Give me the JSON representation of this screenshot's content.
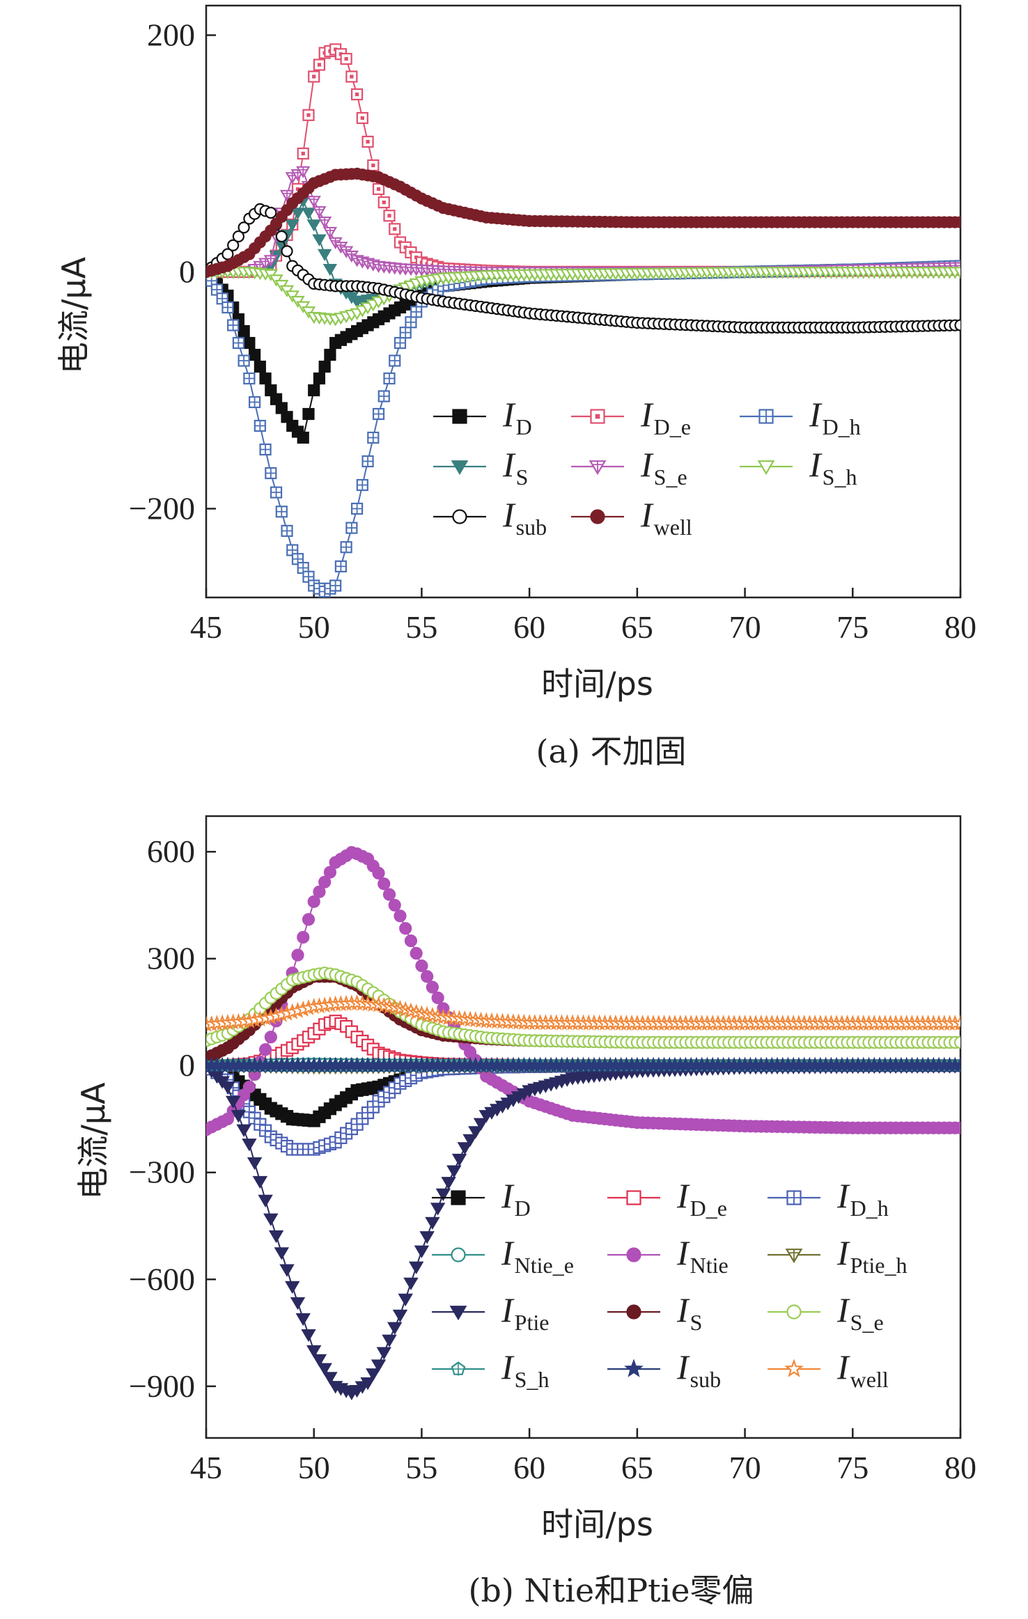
{
  "chart_data": [
    {
      "type": "line",
      "caption": "(a) 不加固",
      "xlabel": "时间/ps",
      "ylabel": "电流/μA",
      "xlim": [
        45,
        80
      ],
      "ylim": [
        -275,
        225
      ],
      "xticks": [
        45,
        50,
        55,
        60,
        65,
        70,
        75,
        80
      ],
      "yticks": [
        -200,
        0,
        200
      ],
      "legend_position": "lower-right",
      "legend_columns": 3,
      "series": [
        {
          "name": "I",
          "sub": "D",
          "color": "#111111",
          "marker": "square-filled",
          "x": [
            45,
            46,
            47,
            48,
            49,
            49.5,
            50,
            51,
            52,
            53,
            54,
            55,
            56,
            58,
            60,
            65,
            70,
            75,
            80
          ],
          "y": [
            0,
            -20,
            -60,
            -100,
            -130,
            -140,
            -100,
            -60,
            -50,
            -40,
            -30,
            -20,
            -12,
            -8,
            -5,
            -2,
            0,
            2,
            3
          ]
        },
        {
          "name": "I",
          "sub": "D_e",
          "color": "#e0506e",
          "marker": "square-open-dot",
          "x": [
            45,
            47,
            48,
            49,
            49.5,
            50,
            50.5,
            51,
            51.5,
            52,
            52.5,
            53,
            54,
            55,
            56,
            58,
            60,
            65,
            70,
            75,
            80
          ],
          "y": [
            0,
            0,
            5,
            40,
            100,
            165,
            185,
            188,
            180,
            150,
            110,
            70,
            25,
            8,
            3,
            1,
            0,
            0,
            0,
            1,
            2
          ]
        },
        {
          "name": "I",
          "sub": "D_h",
          "color": "#4a6fb5",
          "marker": "square-open-plus",
          "x": [
            45,
            46,
            47,
            48,
            49,
            50,
            50.5,
            51,
            52,
            53,
            54,
            55,
            56,
            58,
            60,
            65,
            70,
            75,
            80
          ],
          "y": [
            0,
            -30,
            -90,
            -170,
            -235,
            -265,
            -270,
            -265,
            -200,
            -120,
            -60,
            -25,
            -12,
            -6,
            -4,
            -2,
            0,
            2,
            5
          ]
        },
        {
          "name": "I",
          "sub": "S",
          "color": "#3a7f7f",
          "marker": "triangle-down-filled",
          "x": [
            45,
            46,
            47,
            48,
            49,
            49.5,
            50,
            51,
            52,
            53,
            54,
            55,
            56,
            58,
            60,
            65,
            70,
            75,
            80
          ],
          "y": [
            0,
            0,
            0,
            5,
            40,
            60,
            40,
            -10,
            -25,
            -22,
            -15,
            -10,
            -5,
            -2,
            0,
            0,
            0,
            0,
            0
          ]
        },
        {
          "name": "I",
          "sub": "S_e",
          "color": "#b45ab4",
          "marker": "triangle-down-open-plus",
          "x": [
            45,
            46,
            47,
            48,
            48.5,
            49,
            49.5,
            50,
            51,
            52,
            53,
            54,
            55,
            56,
            58,
            60,
            65,
            70,
            75,
            80
          ],
          "y": [
            0,
            0,
            0,
            10,
            50,
            80,
            85,
            60,
            25,
            10,
            5,
            3,
            2,
            1,
            0,
            0,
            0,
            0,
            2,
            4
          ]
        },
        {
          "name": "I",
          "sub": "S_h",
          "color": "#8fc850",
          "marker": "triangle-down-open",
          "x": [
            45,
            46,
            47,
            48,
            49,
            50,
            51,
            52,
            53,
            54,
            55,
            56,
            58,
            60,
            65,
            70,
            75,
            80
          ],
          "y": [
            0,
            0,
            0,
            -2,
            -20,
            -38,
            -40,
            -35,
            -25,
            -15,
            -8,
            -5,
            -3,
            -2,
            -1,
            0,
            0,
            0
          ]
        },
        {
          "name": "I",
          "sub": "sub",
          "color": "#111111",
          "marker": "circle-open",
          "x": [
            45,
            46,
            47,
            47.5,
            48,
            48.5,
            49,
            50,
            51,
            52,
            53,
            54,
            55,
            56,
            58,
            60,
            65,
            70,
            75,
            80
          ],
          "y": [
            0,
            15,
            45,
            53,
            50,
            30,
            5,
            -10,
            -12,
            -12,
            -14,
            -18,
            -22,
            -25,
            -30,
            -35,
            -43,
            -47,
            -47,
            -45
          ]
        },
        {
          "name": "I",
          "sub": "well",
          "color": "#7a1f28",
          "marker": "circle-filled",
          "x": [
            45,
            46,
            47,
            48,
            49,
            50,
            51,
            52,
            53,
            54,
            55,
            56,
            58,
            60,
            65,
            70,
            75,
            80
          ],
          "y": [
            0,
            5,
            15,
            35,
            58,
            75,
            82,
            83,
            80,
            72,
            62,
            54,
            46,
            43,
            42,
            42,
            42,
            42
          ]
        }
      ]
    },
    {
      "type": "line",
      "caption": "(b) Ntie和Ptie零偏",
      "xlabel": "时间/ps",
      "ylabel": "电流/μA",
      "xlim": [
        45,
        80
      ],
      "ylim": [
        -1045,
        700
      ],
      "xticks": [
        45,
        50,
        55,
        60,
        65,
        70,
        75,
        80
      ],
      "yticks": [
        -900,
        -600,
        -300,
        0,
        300,
        600
      ],
      "legend_position": "lower-right",
      "legend_columns": 3,
      "series": [
        {
          "name": "I",
          "sub": "D",
          "color": "#111111",
          "marker": "square-filled",
          "x": [
            45,
            46,
            47,
            48,
            49,
            50,
            51,
            52,
            53,
            54,
            55,
            56,
            58,
            60,
            65,
            70,
            75,
            80
          ],
          "y": [
            0,
            -20,
            -70,
            -120,
            -150,
            -155,
            -110,
            -70,
            -60,
            -40,
            -20,
            -10,
            -5,
            -3,
            0,
            0,
            0,
            0
          ]
        },
        {
          "name": "I",
          "sub": "D_e",
          "color": "#e0304e",
          "marker": "square-open",
          "x": [
            45,
            46,
            47,
            48,
            49,
            50,
            50.5,
            51,
            51.5,
            52,
            53,
            54,
            55,
            56,
            58,
            60,
            65,
            70,
            75,
            80
          ],
          "y": [
            0,
            0,
            5,
            20,
            50,
            90,
            115,
            125,
            110,
            80,
            35,
            15,
            8,
            4,
            2,
            0,
            0,
            0,
            0,
            0
          ]
        },
        {
          "name": "I",
          "sub": "D_h",
          "color": "#4a5fb5",
          "marker": "square-open-plus",
          "x": [
            45,
            46,
            47,
            48,
            49,
            50,
            51,
            52,
            53,
            54,
            55,
            56,
            58,
            60,
            65,
            70,
            75,
            80
          ],
          "y": [
            0,
            -40,
            -130,
            -200,
            -235,
            -235,
            -215,
            -165,
            -100,
            -50,
            -20,
            -10,
            -5,
            -3,
            0,
            0,
            0,
            0
          ]
        },
        {
          "name": "I",
          "sub": "Ntie_e",
          "color": "#2f8f8a",
          "marker": "circle-open",
          "x": [
            45,
            50,
            52,
            55,
            60,
            65,
            70,
            75,
            80
          ],
          "y": [
            0,
            5,
            3,
            2,
            1,
            0,
            0,
            0,
            0
          ]
        },
        {
          "name": "I",
          "sub": "Ntie",
          "color": "#b050b8",
          "marker": "circle-filled",
          "x": [
            45,
            46,
            47,
            48,
            49,
            50,
            51,
            51.8,
            52.5,
            53,
            54,
            55,
            56,
            57,
            58,
            60,
            62,
            65,
            70,
            75,
            80
          ],
          "y": [
            -180,
            -150,
            -60,
            80,
            260,
            460,
            570,
            600,
            580,
            540,
            420,
            280,
            160,
            60,
            -30,
            -100,
            -140,
            -160,
            -170,
            -175,
            -175
          ]
        },
        {
          "name": "I",
          "sub": "Ptie_h",
          "color": "#707030",
          "marker": "triangle-down-open-plus",
          "x": [
            45,
            50,
            55,
            60,
            65,
            70,
            75,
            80
          ],
          "y": [
            0,
            -5,
            -3,
            -2,
            0,
            0,
            0,
            0
          ]
        },
        {
          "name": "I",
          "sub": "Ptie",
          "color": "#2a2a60",
          "marker": "triangle-down-filled",
          "x": [
            45,
            46,
            47,
            48,
            49,
            50,
            51,
            51.8,
            52.5,
            53,
            54,
            55,
            56,
            57,
            58,
            60,
            62,
            65,
            70,
            75,
            80
          ],
          "y": [
            0,
            -60,
            -220,
            -430,
            -620,
            -800,
            -900,
            -920,
            -890,
            -840,
            -700,
            -520,
            -360,
            -230,
            -140,
            -70,
            -35,
            -15,
            -5,
            -3,
            -2
          ]
        },
        {
          "name": "I",
          "sub": "S",
          "color": "#6a1a22",
          "marker": "circle-filled",
          "x": [
            45,
            46,
            47,
            48,
            49,
            50,
            51,
            52,
            53,
            54,
            55,
            56,
            58,
            60,
            65,
            70,
            75,
            80
          ],
          "y": [
            20,
            50,
            100,
            160,
            220,
            250,
            250,
            225,
            175,
            130,
            100,
            85,
            75,
            70,
            65,
            65,
            65,
            65
          ]
        },
        {
          "name": "I",
          "sub": "S_e",
          "color": "#9acd55",
          "marker": "circle-open",
          "x": [
            45,
            46,
            47,
            48,
            49,
            50,
            50.5,
            51,
            52,
            53,
            54,
            55,
            56,
            58,
            60,
            65,
            70,
            75,
            80
          ],
          "y": [
            70,
            90,
            130,
            190,
            240,
            255,
            260,
            255,
            235,
            195,
            150,
            115,
            95,
            78,
            70,
            65,
            65,
            65,
            65
          ]
        },
        {
          "name": "I",
          "sub": "S_h",
          "color": "#2f8f8a",
          "marker": "pentagon-open-plus",
          "x": [
            45,
            50,
            55,
            60,
            65,
            70,
            75,
            80
          ],
          "y": [
            0,
            -3,
            -2,
            -1,
            0,
            0,
            0,
            0
          ]
        },
        {
          "name": "I",
          "sub": "sub",
          "color": "#2a3a7a",
          "marker": "star-filled",
          "x": [
            45,
            50,
            55,
            60,
            65,
            70,
            75,
            80
          ],
          "y": [
            0,
            0,
            0,
            0,
            0,
            0,
            0,
            0
          ]
        },
        {
          "name": "I",
          "sub": "well",
          "color": "#f0883a",
          "marker": "star-open",
          "x": [
            45,
            46,
            47,
            48,
            49,
            50,
            51,
            52,
            53,
            54,
            55,
            56,
            58,
            60,
            65,
            70,
            75,
            80
          ],
          "y": [
            115,
            120,
            125,
            135,
            150,
            165,
            172,
            175,
            170,
            160,
            145,
            135,
            125,
            120,
            118,
            118,
            118,
            118
          ]
        }
      ]
    }
  ]
}
